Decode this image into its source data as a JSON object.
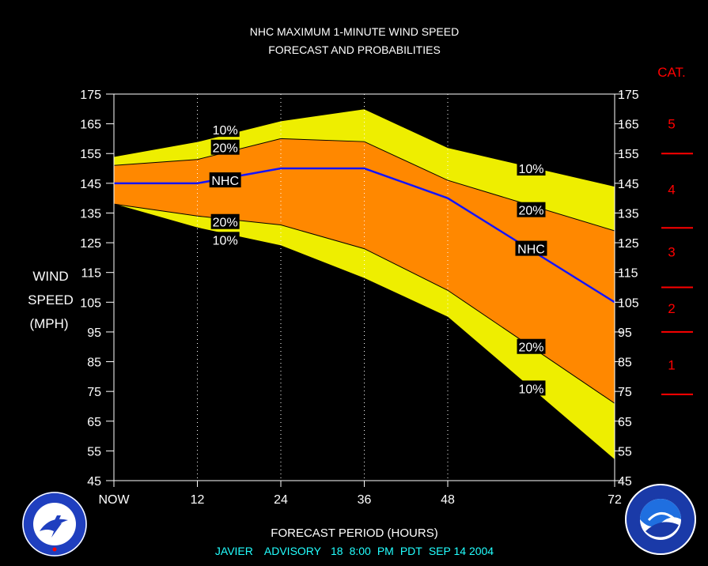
{
  "chart_data": {
    "type": "area",
    "title": [
      "NHC MAXIMUM 1-MINUTE WIND SPEED",
      "FORECAST AND PROBABILITIES"
    ],
    "ylabel": [
      "WIND",
      "SPEED",
      "(MPH)"
    ],
    "xlabel": "FORECAST PERIOD (HOURS)",
    "ylim": [
      45,
      175
    ],
    "xlim": [
      0,
      72
    ],
    "yticks": [
      45,
      55,
      65,
      75,
      85,
      95,
      105,
      115,
      125,
      135,
      145,
      155,
      165,
      175
    ],
    "xticks": [
      {
        "x": 0,
        "label": "NOW"
      },
      {
        "x": 12,
        "label": "12"
      },
      {
        "x": 24,
        "label": "24"
      },
      {
        "x": 36,
        "label": "36"
      },
      {
        "x": 48,
        "label": "48"
      },
      {
        "x": 72,
        "label": "72"
      }
    ],
    "x": [
      0,
      12,
      24,
      36,
      48,
      72
    ],
    "series": [
      {
        "name": "10%",
        "role": "upper",
        "values": [
          154,
          159,
          166,
          170,
          157,
          144
        ]
      },
      {
        "name": "20%",
        "role": "upper",
        "values": [
          151,
          153,
          160,
          159,
          146,
          129
        ]
      },
      {
        "name": "NHC",
        "values": [
          145,
          145,
          150,
          150,
          140,
          105
        ]
      },
      {
        "name": "20%",
        "role": "lower",
        "values": [
          138,
          134,
          131,
          123,
          109,
          71
        ]
      },
      {
        "name": "10%",
        "role": "lower",
        "values": [
          138,
          130,
          124,
          113,
          100,
          52
        ]
      }
    ],
    "labels": [
      {
        "text": "10%",
        "x": 16,
        "y": 163
      },
      {
        "text": "20%",
        "x": 16,
        "y": 157
      },
      {
        "text": "NHC",
        "x": 16,
        "y": 146
      },
      {
        "text": "20%",
        "x": 16,
        "y": 132
      },
      {
        "text": "10%",
        "x": 16,
        "y": 126
      },
      {
        "text": "10%",
        "x": 60,
        "y": 150
      },
      {
        "text": "20%",
        "x": 60,
        "y": 136
      },
      {
        "text": "NHC",
        "x": 60,
        "y": 123
      },
      {
        "text": "20%",
        "x": 60,
        "y": 90
      },
      {
        "text": "10%",
        "x": 60,
        "y": 76
      }
    ],
    "categories_header": "CAT.",
    "categories": [
      {
        "label": "5",
        "y": 165
      },
      {
        "label": "4",
        "y": 143
      },
      {
        "label": "3",
        "y": 122
      },
      {
        "label": "2",
        "y": 103
      },
      {
        "label": "1",
        "y": 84
      }
    ],
    "category_thresholds": [
      155,
      130,
      110,
      95,
      74
    ],
    "grid": "vertical dotted",
    "colors": {
      "background": "#000000",
      "outer_band": "#eeee00",
      "inner_band": "#ff8800",
      "nhc_line": "#1414ff",
      "text": "#ffffff",
      "category": "#ff0000",
      "advisory": "#22ffff"
    }
  },
  "advisory": {
    "storm": "JAVIER",
    "type": "ADVISORY",
    "number": "18",
    "time": "8:00",
    "ampm": "PM",
    "tz": "PDT",
    "date": "SEP 14 2004"
  }
}
